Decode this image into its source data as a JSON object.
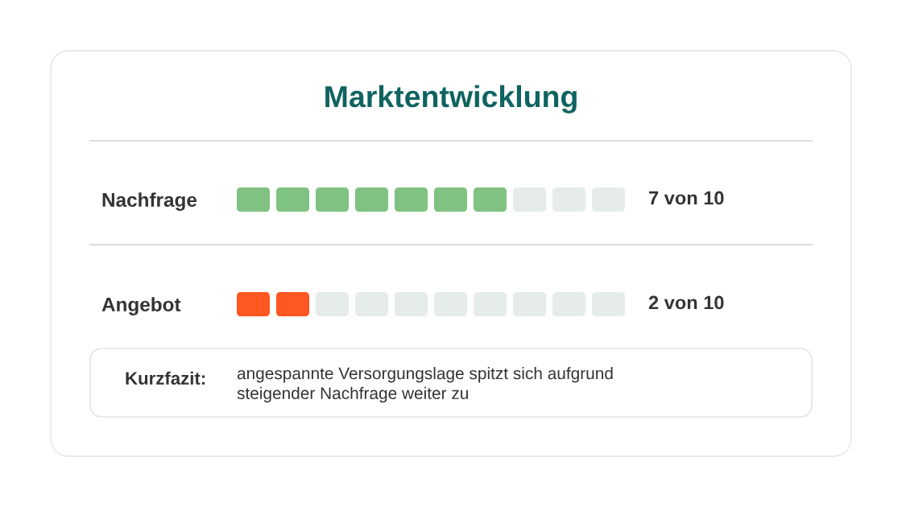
{
  "chart_data": {
    "type": "bar",
    "orientation": "horizontal",
    "stacked": true,
    "title": "Marktentwicklung",
    "categories": [
      "Nachfrage",
      "Angebot"
    ],
    "series": [
      {
        "colors": [
          "#80c281",
          "#ff5722"
        ],
        "values": [
          7,
          2
        ],
        "value_labels": [
          "7 von 10",
          "2 von 10"
        ]
      },
      {
        "color": "#e6ecec",
        "values": [
          3,
          8
        ]
      }
    ],
    "tick_labels": "y",
    "annotations": [
      "Kurzfazit:",
      "angespannte Versorgungslage spitzt sich aufgrund steigender Nachfrage weiter zu"
    ]
  }
}
